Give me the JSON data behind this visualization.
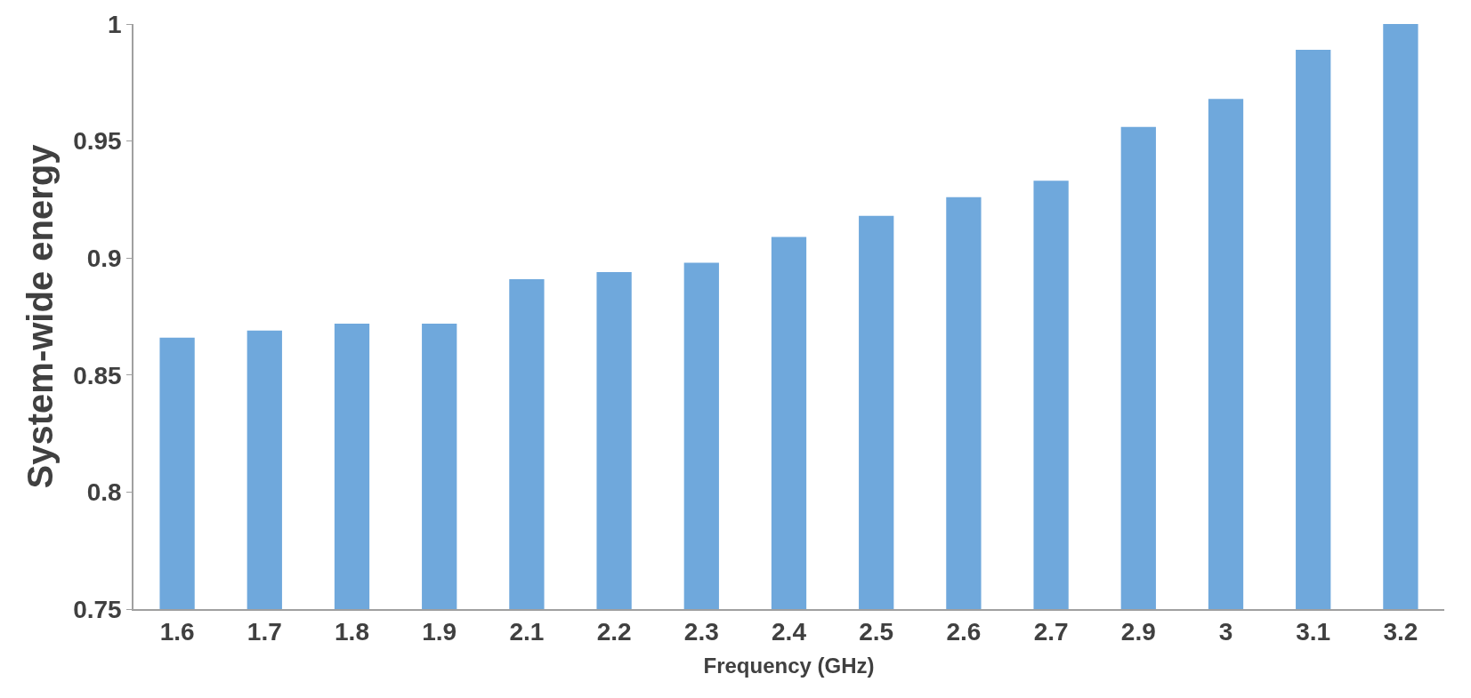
{
  "chart_data": {
    "type": "bar",
    "xlabel": "Frequency (GHz)",
    "ylabel": "System-wide energy",
    "categories": [
      "1.6",
      "1.7",
      "1.8",
      "1.9",
      "2.1",
      "2.2",
      "2.3",
      "2.4",
      "2.5",
      "2.6",
      "2.7",
      "2.9",
      "3",
      "3.1",
      "3.2"
    ],
    "values": [
      0.866,
      0.869,
      0.872,
      0.872,
      0.891,
      0.894,
      0.898,
      0.909,
      0.918,
      0.926,
      0.933,
      0.956,
      0.968,
      0.989,
      1.0
    ],
    "color": "#6fa8dc",
    "ylim": [
      0.75,
      1
    ],
    "yticks": [
      0.75,
      0.8,
      0.85,
      0.9,
      0.95,
      1
    ]
  }
}
